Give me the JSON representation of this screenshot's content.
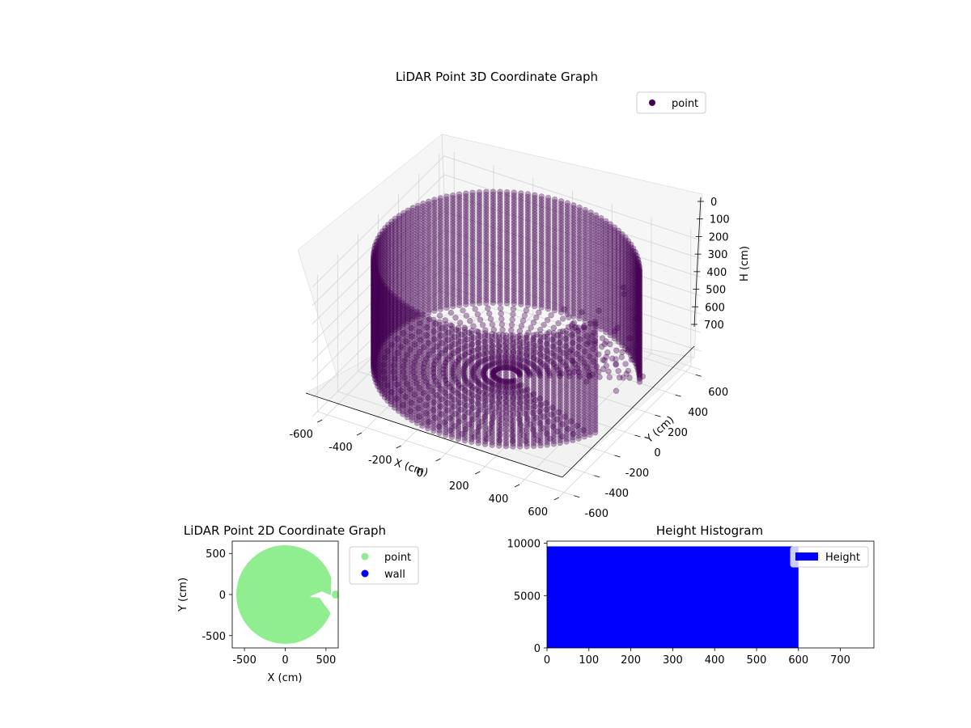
{
  "chart_data": [
    {
      "type": "scatter",
      "subtype": "3d",
      "title": "LiDAR Point 3D Coordinate Graph",
      "xlabel": "X (cm)",
      "ylabel": "Y (cm)",
      "zlabel": "H (cm)",
      "xticks": [
        "-600",
        "-400",
        "-200",
        "0",
        "200",
        "400",
        "600"
      ],
      "yticks": [
        "-600",
        "-400",
        "-200",
        "0",
        "200",
        "400",
        "600"
      ],
      "zticks": [
        "0",
        "100",
        "200",
        "300",
        "400",
        "500",
        "600",
        "700"
      ],
      "xlim": [
        -650,
        650
      ],
      "ylim": [
        -650,
        650
      ],
      "zlim": [
        0,
        700
      ],
      "z_inverted": true,
      "grid": true,
      "legend": {
        "placement": "top-right",
        "entries": [
          {
            "name": "point",
            "color": "#440154"
          }
        ]
      },
      "series": [
        {
          "name": "point",
          "color": "#440154",
          "shape": "cylindrical wall of points, radius ~600 cm, heights 0–600 cm, open gap toward +X",
          "radius": 600,
          "height_range": [
            0,
            600
          ],
          "gap_angle_deg": [
            -20,
            25
          ]
        }
      ]
    },
    {
      "type": "scatter",
      "title": "LiDAR Point 2D Coordinate Graph",
      "xlabel": "X (cm)",
      "ylabel": "Y (cm)",
      "xticks": [
        "-500",
        "0",
        "500"
      ],
      "yticks": [
        "-500",
        "0",
        "500"
      ],
      "xlim": [
        -650,
        650
      ],
      "ylim": [
        -650,
        650
      ],
      "legend": {
        "placement": "outside-right",
        "entries": [
          {
            "name": "point",
            "color": "#90ee90"
          },
          {
            "name": "wall",
            "color": "#0000ff"
          }
        ]
      },
      "series": [
        {
          "name": "point",
          "color": "#90ee90",
          "shape": "filled disc radius ~600 cm with notch toward +X"
        },
        {
          "name": "wall",
          "color": "#0000ff"
        }
      ]
    },
    {
      "type": "bar",
      "subtype": "histogram",
      "title": "Height Histogram",
      "xticks": [
        "0",
        "100",
        "200",
        "300",
        "400",
        "500",
        "600",
        "700"
      ],
      "yticks": [
        "0",
        "5000",
        "10000"
      ],
      "xlim": [
        0,
        780
      ],
      "ylim": [
        0,
        10200
      ],
      "legend": {
        "placement": "top-right",
        "entries": [
          {
            "name": "Height",
            "color": "#0000ff"
          }
        ]
      },
      "bins": [
        {
          "x0": 0,
          "x1": 600,
          "count": 9700
        }
      ],
      "color": "#0000ff"
    }
  ]
}
